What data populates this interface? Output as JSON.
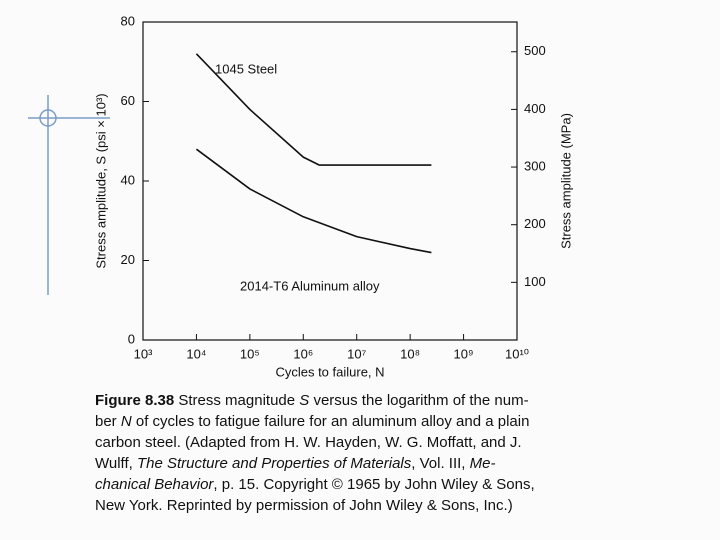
{
  "chart_data": {
    "type": "line",
    "xlabel": "Cycles to failure, N",
    "ylabel": "Stress amplitude, S (psi × 10³)",
    "y2label": "Stress amplitude (MPa)",
    "xscale": "log",
    "xlim": [
      1000,
      10000000000
    ],
    "xticks": [
      {
        "value": 1000,
        "label": "10³"
      },
      {
        "value": 10000,
        "label": "10⁴"
      },
      {
        "value": 100000,
        "label": "10⁵"
      },
      {
        "value": 1000000,
        "label": "10⁶"
      },
      {
        "value": 10000000,
        "label": "10⁷"
      },
      {
        "value": 100000000,
        "label": "10⁸"
      },
      {
        "value": 1000000000,
        "label": "10⁹"
      },
      {
        "value": 10000000000,
        "label": "10¹⁰"
      }
    ],
    "ylim": [
      0,
      80
    ],
    "yticks": [
      0,
      20,
      40,
      60,
      80
    ],
    "y2lim": [
      0,
      551.6
    ],
    "y2ticks": [
      100,
      200,
      300,
      400,
      500
    ],
    "series": [
      {
        "name": "1045 Steel",
        "color": "#111111",
        "x": [
          10000,
          100000,
          1000000,
          2000000,
          10000000,
          250000000
        ],
        "values": [
          72,
          58,
          46,
          44,
          44,
          44
        ]
      },
      {
        "name": "2014-T6 Aluminum alloy",
        "color": "#111111",
        "x": [
          10000,
          100000,
          1000000,
          10000000,
          100000000,
          250000000
        ],
        "values": [
          48,
          38,
          31,
          26,
          23,
          22
        ]
      }
    ],
    "caption": {
      "label": "Figure 8.38",
      "lines": [
        [
          "Stress magnitude ",
          {
            "text": "S",
            "style": "italic"
          },
          " versus the logarithm of the num-"
        ],
        [
          "ber ",
          {
            "text": "N",
            "style": "italic"
          },
          " of cycles to fatigue failure for an aluminum alloy and a plain"
        ],
        [
          "carbon steel. (Adapted from H. W. Hayden, W. G. Moffatt, and J."
        ],
        [
          "Wulff, ",
          {
            "text": "The Structure and Properties of Materials",
            "style": "italic"
          },
          ", Vol. III, ",
          {
            "text": "Me-",
            "style": "italic"
          }
        ],
        [
          {
            "text": "chanical Behavior",
            "style": "italic"
          },
          ", p. 15. Copyright © 1965 by John Wiley & Sons,"
        ],
        [
          "New York. Reprinted by permission of John Wiley & Sons, Inc.)"
        ]
      ]
    }
  }
}
